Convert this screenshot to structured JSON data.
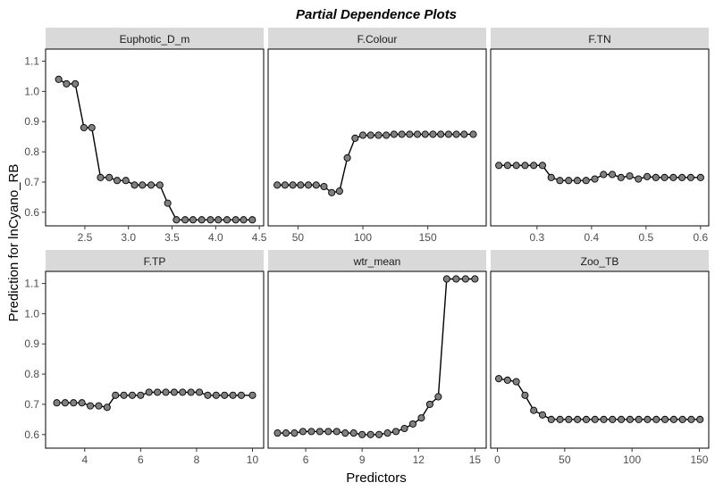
{
  "chart_data": {
    "type": "line",
    "title": "Partial Dependence Plots",
    "xlabel": "Predictors",
    "ylabel": "Prediction for lnCyano_RB",
    "ylim": [
      0.555,
      1.14
    ],
    "yticks": [
      0.6,
      0.7,
      0.8,
      0.9,
      1.0,
      1.1
    ],
    "ytick_labels": [
      "0.6",
      "0.7",
      "0.8",
      "0.9",
      "1.0",
      "1.1"
    ],
    "colors": {
      "strip": "#d9d9d9",
      "point_fill": "#808080",
      "line": "#000000"
    },
    "panels": [
      {
        "name": "Euphotic_D_m",
        "xlim": [
          2.05,
          4.55
        ],
        "xticks": [
          2.5,
          3.0,
          3.5,
          4.0,
          4.5
        ],
        "xtick_labels": [
          "2.5",
          "3.0",
          "3.5",
          "4.0",
          "4.5"
        ],
        "x": [
          2.2,
          2.29,
          2.39,
          2.49,
          2.58,
          2.68,
          2.78,
          2.87,
          2.97,
          3.07,
          3.16,
          3.26,
          3.36,
          3.45,
          3.55,
          3.65,
          3.74,
          3.84,
          3.94,
          4.03,
          4.13,
          4.23,
          4.32,
          4.42
        ],
        "y": [
          1.04,
          1.025,
          1.025,
          0.88,
          0.88,
          0.715,
          0.715,
          0.705,
          0.705,
          0.69,
          0.69,
          0.69,
          0.69,
          0.63,
          0.575,
          0.575,
          0.575,
          0.575,
          0.575,
          0.575,
          0.575,
          0.575,
          0.575,
          0.575
        ]
      },
      {
        "name": "F.Colour",
        "xlim": [
          27,
          195
        ],
        "xticks": [
          50,
          100,
          150
        ],
        "xtick_labels": [
          "50",
          "100",
          "150"
        ],
        "x": [
          34,
          40,
          46,
          52,
          58,
          64,
          70,
          76,
          82,
          88,
          94,
          100,
          106,
          112,
          118,
          124,
          130,
          136,
          142,
          148,
          154,
          160,
          166,
          172,
          178,
          185
        ],
        "y": [
          0.69,
          0.69,
          0.69,
          0.69,
          0.69,
          0.69,
          0.685,
          0.665,
          0.67,
          0.78,
          0.845,
          0.855,
          0.855,
          0.855,
          0.855,
          0.858,
          0.858,
          0.858,
          0.858,
          0.858,
          0.858,
          0.858,
          0.858,
          0.858,
          0.858,
          0.858
        ]
      },
      {
        "name": "F.TN",
        "xlim": [
          0.215,
          0.615
        ],
        "xticks": [
          0.3,
          0.4,
          0.5,
          0.6
        ],
        "xtick_labels": [
          "0.3",
          "0.4",
          "0.5",
          "0.6"
        ],
        "x": [
          0.23,
          0.246,
          0.262,
          0.278,
          0.294,
          0.31,
          0.326,
          0.342,
          0.358,
          0.374,
          0.39,
          0.406,
          0.422,
          0.438,
          0.454,
          0.47,
          0.486,
          0.502,
          0.518,
          0.534,
          0.55,
          0.566,
          0.582,
          0.6
        ],
        "y": [
          0.755,
          0.755,
          0.755,
          0.755,
          0.755,
          0.755,
          0.715,
          0.705,
          0.705,
          0.705,
          0.705,
          0.71,
          0.725,
          0.725,
          0.715,
          0.72,
          0.71,
          0.718,
          0.715,
          0.715,
          0.715,
          0.715,
          0.715,
          0.715
        ]
      },
      {
        "name": "F.TP",
        "xlim": [
          2.6,
          10.4
        ],
        "xticks": [
          4,
          6,
          8,
          10
        ],
        "xtick_labels": [
          "4",
          "6",
          "8",
          "10"
        ],
        "x": [
          3.0,
          3.3,
          3.6,
          3.9,
          4.2,
          4.5,
          4.8,
          5.1,
          5.4,
          5.7,
          6.0,
          6.3,
          6.6,
          6.9,
          7.2,
          7.5,
          7.8,
          8.1,
          8.4,
          8.7,
          9.0,
          9.3,
          9.6,
          10.0
        ],
        "y": [
          0.705,
          0.705,
          0.705,
          0.705,
          0.695,
          0.695,
          0.69,
          0.73,
          0.73,
          0.73,
          0.73,
          0.74,
          0.74,
          0.74,
          0.74,
          0.74,
          0.74,
          0.74,
          0.73,
          0.73,
          0.73,
          0.73,
          0.73,
          0.73
        ]
      },
      {
        "name": "wtr_mean",
        "xlim": [
          4.0,
          15.6
        ],
        "xticks": [
          6,
          9,
          12,
          15
        ],
        "xtick_labels": [
          "6",
          "9",
          "12",
          "15"
        ],
        "x": [
          4.5,
          4.95,
          5.4,
          5.85,
          6.3,
          6.75,
          7.2,
          7.65,
          8.1,
          8.55,
          9.0,
          9.45,
          9.9,
          10.35,
          10.8,
          11.25,
          11.7,
          12.15,
          12.6,
          13.05,
          13.5,
          14.0,
          14.5,
          15.0
        ],
        "y": [
          0.605,
          0.605,
          0.605,
          0.61,
          0.61,
          0.61,
          0.61,
          0.61,
          0.605,
          0.605,
          0.6,
          0.6,
          0.6,
          0.605,
          0.61,
          0.62,
          0.635,
          0.655,
          0.7,
          0.725,
          1.115,
          1.115,
          1.115,
          1.115
        ]
      },
      {
        "name": "Zoo_TB",
        "xlim": [
          -5,
          157
        ],
        "xticks": [
          0,
          50,
          100,
          150
        ],
        "xtick_labels": [
          "0",
          "50",
          "100",
          "150"
        ],
        "x": [
          1,
          7.5,
          14,
          20.5,
          27,
          33.5,
          40,
          46.5,
          53,
          59.5,
          66,
          72.5,
          79,
          85.5,
          92,
          98.5,
          105,
          111.5,
          118,
          124.5,
          131,
          137.5,
          144,
          150.5
        ],
        "y": [
          0.785,
          0.78,
          0.775,
          0.73,
          0.68,
          0.665,
          0.65,
          0.65,
          0.65,
          0.65,
          0.65,
          0.65,
          0.65,
          0.65,
          0.65,
          0.65,
          0.65,
          0.65,
          0.65,
          0.65,
          0.65,
          0.65,
          0.65,
          0.65
        ]
      }
    ]
  }
}
